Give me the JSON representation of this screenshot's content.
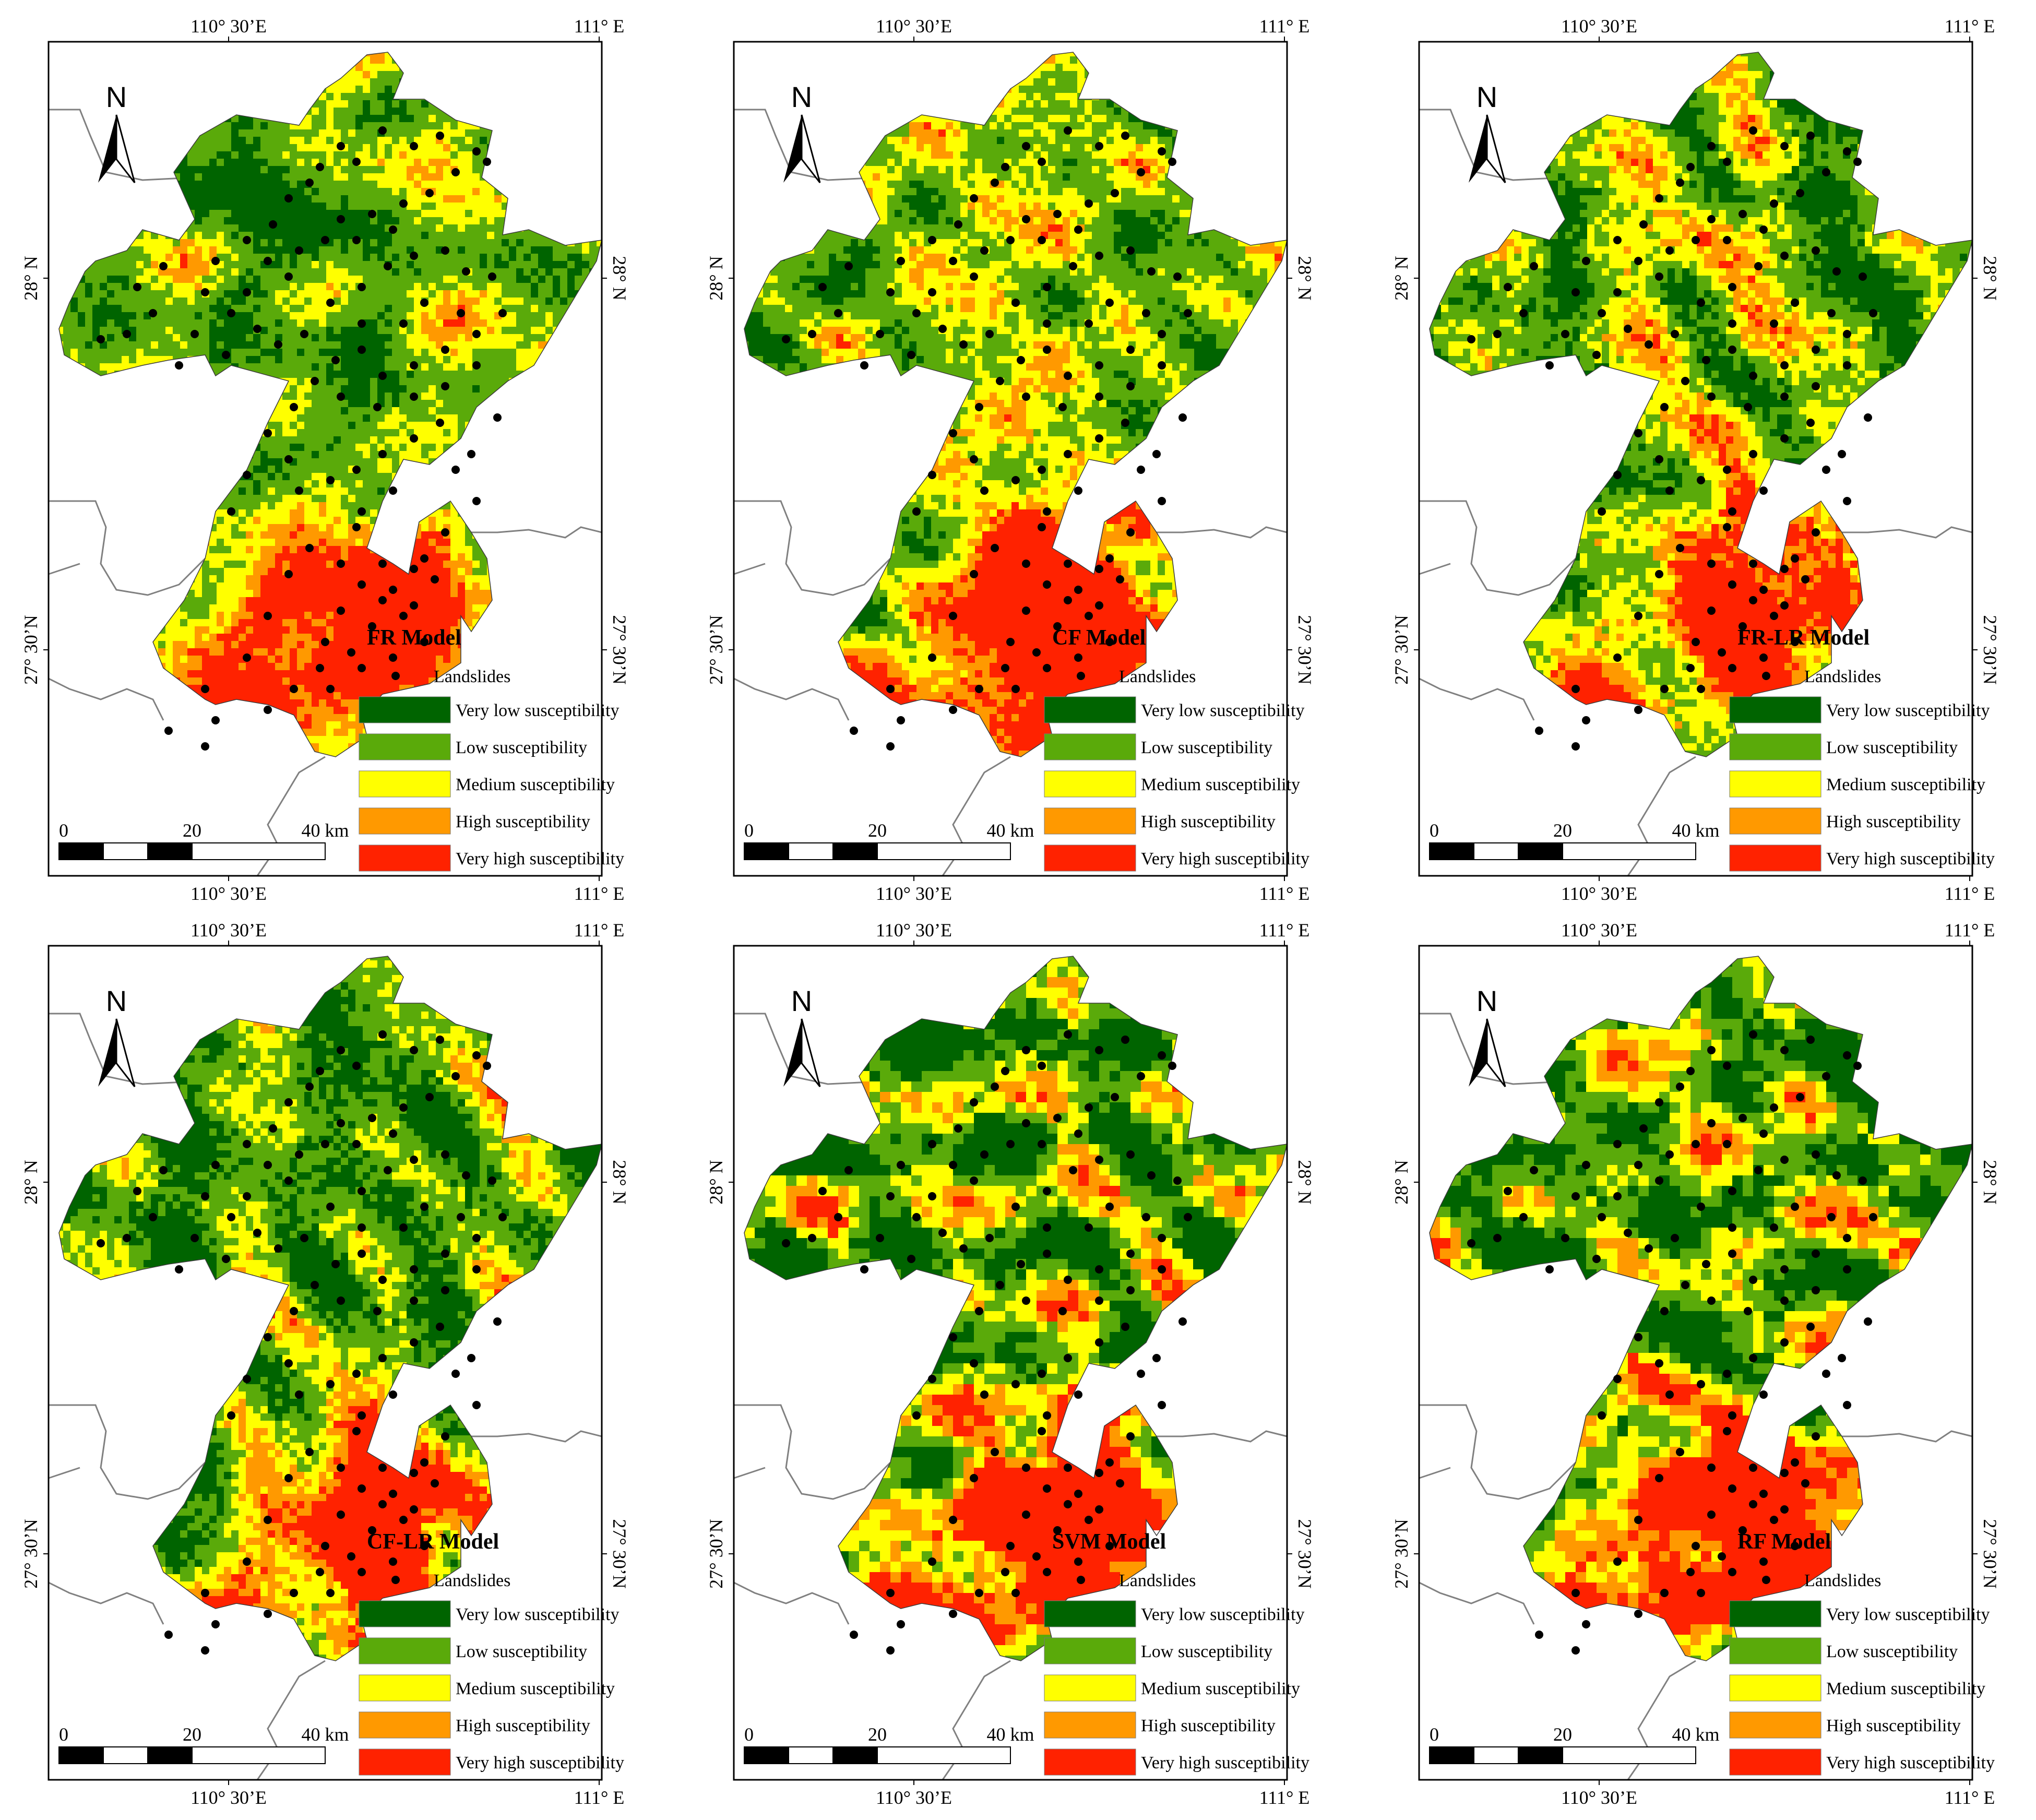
{
  "panels": [
    {
      "title": "FR Model",
      "style": "fine",
      "seed": 11
    },
    {
      "title": "CF Model",
      "style": "fine",
      "seed": 23
    },
    {
      "title": "FR-LR Model",
      "style": "fineGreen",
      "seed": 37
    },
    {
      "title": "CF-LR Model",
      "style": "fineGreen",
      "seed": 41
    },
    {
      "title": "SVM Model",
      "style": "coarse",
      "seed": 53
    },
    {
      "title": "RF Model",
      "style": "coarse",
      "seed": 67
    }
  ],
  "axes": {
    "top_labels": [
      "110° 30’E",
      "111° E"
    ],
    "bottom_labels": [
      "110° 30’E",
      "111° E"
    ],
    "left_labels": [
      "28° N",
      "27° 30’N"
    ],
    "right_labels": [
      "28° N",
      "27° 30’N"
    ]
  },
  "north_label": "N",
  "scale_bar": {
    "labels": [
      "0",
      "20",
      "40 km"
    ]
  },
  "legend": {
    "point_label": "Landslides",
    "classes": [
      {
        "label": "Very low susceptibility",
        "color": "#006400"
      },
      {
        "label": "Low susceptibility",
        "color": "#5aaa0a"
      },
      {
        "label": "Medium susceptibility",
        "color": "#ffff00"
      },
      {
        "label": "High susceptibility",
        "color": "#ff9900"
      },
      {
        "label": "Very high susceptibility",
        "color": "#ff2200"
      }
    ]
  },
  "colors": {
    "very_low": "#006400",
    "low": "#5aaa0a",
    "medium": "#ffff00",
    "high": "#ff9900",
    "very_high": "#ff2200",
    "landslide": "#000000",
    "frame": "#000000",
    "border_line": "#808080"
  }
}
